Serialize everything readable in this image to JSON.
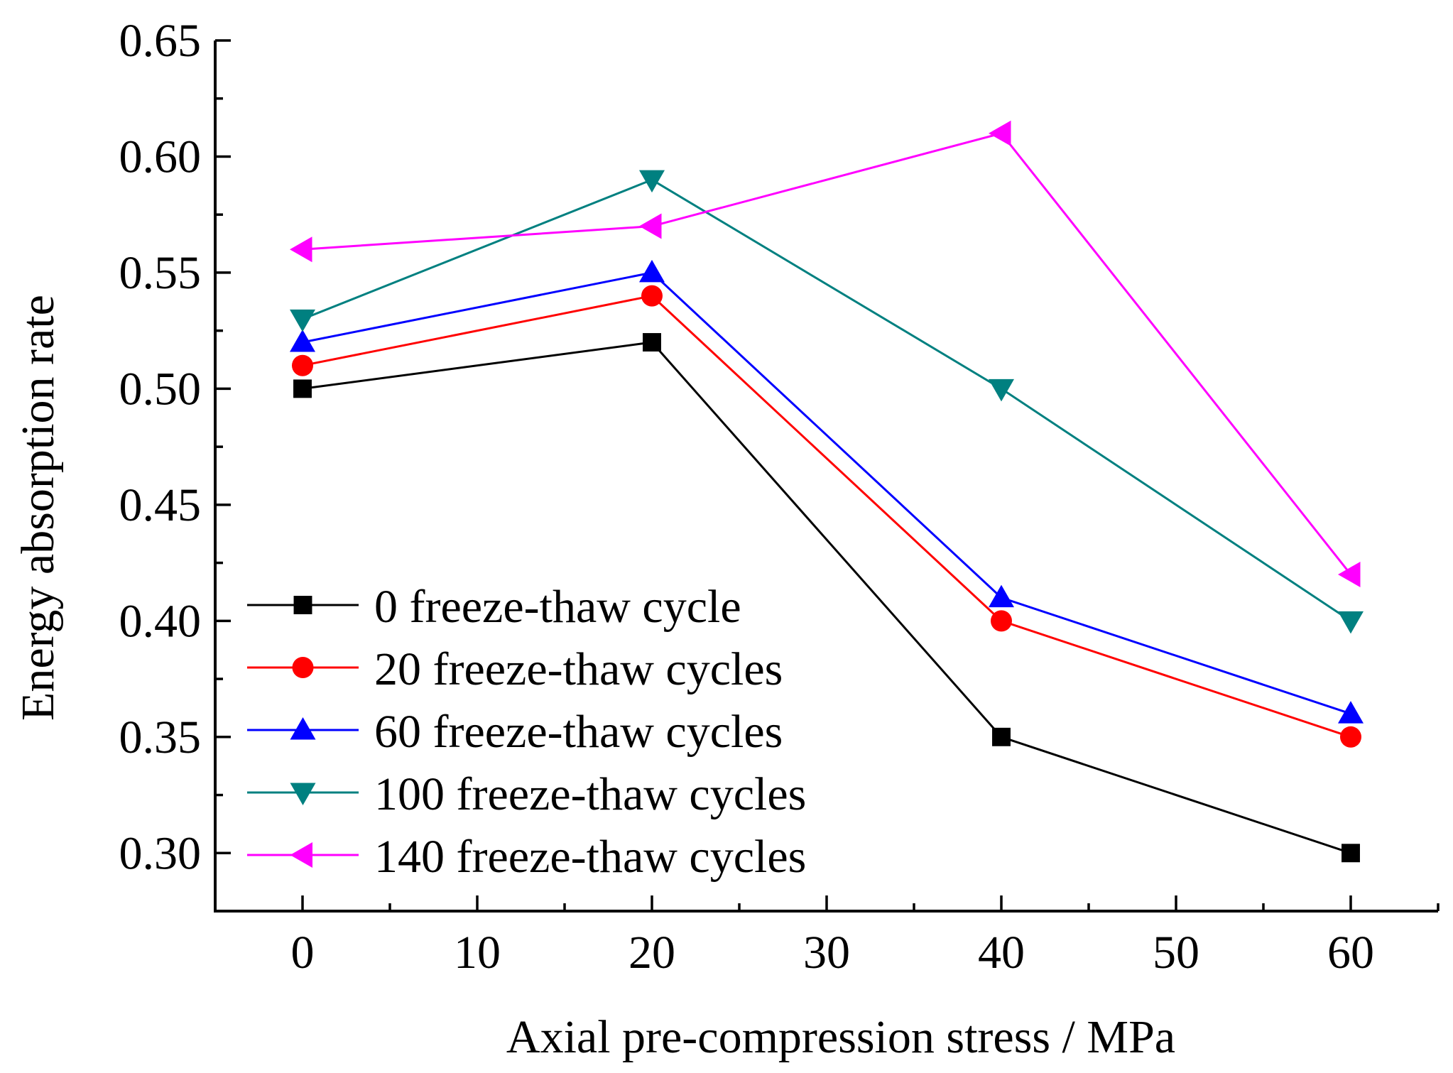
{
  "chart_data": {
    "type": "line",
    "title": "",
    "xlabel": "Axial pre-compression stress / MPa",
    "ylabel": "Energy absorption rate",
    "xlim": [
      -5,
      65
    ],
    "ylim": [
      0.275,
      0.65
    ],
    "x_ticks": [
      0,
      10,
      20,
      30,
      40,
      50,
      60
    ],
    "x_tick_labels": [
      "0",
      "10",
      "20",
      "30",
      "40",
      "50",
      "60"
    ],
    "y_ticks": [
      0.3,
      0.35,
      0.4,
      0.45,
      0.5,
      0.55,
      0.6,
      0.65
    ],
    "y_tick_labels": [
      "0.30",
      "0.35",
      "0.40",
      "0.45",
      "0.50",
      "0.55",
      "0.60",
      "0.65"
    ],
    "grid": false,
    "legend_position": "bottom-left",
    "x": [
      0,
      20,
      40,
      60
    ],
    "series": [
      {
        "name": "0 freeze-thaw cycle",
        "color": "#000000",
        "marker": "square",
        "values": [
          0.5,
          0.52,
          0.35,
          0.3
        ]
      },
      {
        "name": "20 freeze-thaw cycles",
        "color": "#ff0000",
        "marker": "circle",
        "values": [
          0.51,
          0.54,
          0.4,
          0.35
        ]
      },
      {
        "name": "60 freeze-thaw cycles",
        "color": "#0000ff",
        "marker": "triangle-up",
        "values": [
          0.52,
          0.55,
          0.41,
          0.36
        ]
      },
      {
        "name": "100 freeze-thaw cycles",
        "color": "#008080",
        "marker": "triangle-down",
        "values": [
          0.53,
          0.59,
          0.5,
          0.4
        ]
      },
      {
        "name": "140 freeze-thaw cycles",
        "color": "#ff00ff",
        "marker": "triangle-left",
        "values": [
          0.56,
          0.57,
          0.61,
          0.42
        ]
      }
    ]
  }
}
